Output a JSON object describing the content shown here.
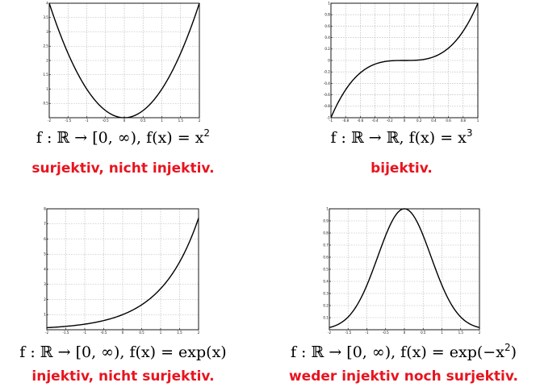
{
  "chart_data": [
    {
      "type": "line",
      "function": "x^2",
      "xlim": [
        -2,
        2
      ],
      "ylim": [
        0,
        4
      ],
      "xticks": [
        -2,
        -1.5,
        -1,
        -0.5,
        0,
        0.5,
        1,
        1.5,
        2
      ],
      "xtick_labels": [
        "-2",
        "-1.5",
        "-1",
        "-0.5",
        "0",
        "0.5",
        "1",
        "1.5",
        "2"
      ],
      "yticks": [
        0.5,
        1,
        1.5,
        2,
        2.5,
        3,
        3.5,
        4
      ],
      "ytick_labels": [
        "0.5",
        "1",
        "1.5",
        "2",
        "2.5",
        "3",
        "3.5",
        "4"
      ],
      "grid": true,
      "x": [
        -2,
        -1.75,
        -1.5,
        -1.25,
        -1,
        -0.75,
        -0.5,
        -0.25,
        0,
        0.25,
        0.5,
        0.75,
        1,
        1.25,
        1.5,
        1.75,
        2
      ],
      "y": [
        4,
        3.0625,
        2.25,
        1.5625,
        1,
        0.5625,
        0.25,
        0.0625,
        0,
        0.0625,
        0.25,
        0.5625,
        1,
        1.5625,
        2.25,
        3.0625,
        4
      ],
      "formula": {
        "lhs": "f : ℝ → [0, ∞), f(x) = x",
        "sup": "2",
        "rhs": ""
      },
      "verdict": "surjektiv, nicht injektiv."
    },
    {
      "type": "line",
      "function": "x^3",
      "xlim": [
        -1,
        1
      ],
      "ylim": [
        -1,
        1
      ],
      "xticks": [
        -1,
        -0.8,
        -0.6,
        -0.4,
        -0.2,
        0,
        0.2,
        0.4,
        0.6,
        0.8,
        1
      ],
      "xtick_labels": [
        "-1",
        "-0.8",
        "-0.6",
        "-0.4",
        "-0.2",
        "0",
        "0.2",
        "0.4",
        "0.6",
        "0.8",
        "1"
      ],
      "yticks": [
        -1,
        -0.8,
        -0.6,
        -0.4,
        -0.2,
        0,
        0.2,
        0.4,
        0.6,
        0.8,
        1
      ],
      "ytick_labels": [
        "-1",
        "-0.8",
        "-0.6",
        "-0.4",
        "-0.2",
        "0",
        "0.2",
        "0.4",
        "0.6",
        "0.8",
        "1"
      ],
      "grid": true,
      "x": [
        -1,
        -0.9,
        -0.8,
        -0.7,
        -0.6,
        -0.5,
        -0.4,
        -0.3,
        -0.2,
        -0.1,
        0,
        0.1,
        0.2,
        0.3,
        0.4,
        0.5,
        0.6,
        0.7,
        0.8,
        0.9,
        1
      ],
      "y": [
        -1,
        -0.729,
        -0.512,
        -0.343,
        -0.216,
        -0.125,
        -0.064,
        -0.027,
        -0.008,
        -0.001,
        0,
        0.001,
        0.008,
        0.027,
        0.064,
        0.125,
        0.216,
        0.343,
        0.512,
        0.729,
        1
      ],
      "formula": {
        "lhs": "f : ℝ → ℝ, f(x) = x",
        "sup": "3",
        "rhs": ""
      },
      "verdict": "bijektiv."
    },
    {
      "type": "line",
      "function": "exp(x)",
      "xlim": [
        -2,
        2
      ],
      "ylim": [
        0,
        8
      ],
      "xticks": [
        -2,
        -1.5,
        -1,
        -0.5,
        0,
        0.5,
        1,
        1.5,
        2
      ],
      "xtick_labels": [
        "-2",
        "-1.5",
        "-1",
        "-0.5",
        "0",
        "0.5",
        "1",
        "1.5",
        "2"
      ],
      "yticks": [
        1,
        2,
        3,
        4,
        5,
        6,
        7,
        8
      ],
      "ytick_labels": [
        "1",
        "2",
        "3",
        "4",
        "5",
        "6",
        "7",
        "8"
      ],
      "grid": true,
      "x": [
        -2,
        -1.75,
        -1.5,
        -1.25,
        -1,
        -0.75,
        -0.5,
        -0.25,
        0,
        0.25,
        0.5,
        0.75,
        1,
        1.25,
        1.5,
        1.75,
        2
      ],
      "y": [
        0.135,
        0.174,
        0.223,
        0.287,
        0.368,
        0.472,
        0.607,
        0.779,
        1,
        1.284,
        1.649,
        2.117,
        2.718,
        3.49,
        4.482,
        5.755,
        7.389
      ],
      "formula": {
        "lhs": "f : ℝ → [0, ∞), f(x) = exp(x)",
        "sup": "",
        "rhs": ""
      },
      "verdict": "injektiv, nicht surjektiv."
    },
    {
      "type": "line",
      "function": "exp(-x^2)",
      "xlim": [
        -2,
        2
      ],
      "ylim": [
        0,
        1
      ],
      "xticks": [
        -2,
        -1.5,
        -1,
        -0.5,
        0,
        0.5,
        1,
        1.5,
        2
      ],
      "xtick_labels": [
        "-2",
        "-1.5",
        "-1",
        "-0.5",
        "0",
        "0.5",
        "1",
        "1.5",
        "2"
      ],
      "yticks": [
        0.1,
        0.2,
        0.3,
        0.4,
        0.5,
        0.6,
        0.7,
        0.8,
        0.9,
        1
      ],
      "ytick_labels": [
        "0.1",
        "0.2",
        "0.3",
        "0.4",
        "0.5",
        "0.6",
        "0.7",
        "0.8",
        "0.9",
        "1"
      ],
      "grid": true,
      "x": [
        -2,
        -1.75,
        -1.5,
        -1.25,
        -1,
        -0.75,
        -0.5,
        -0.25,
        0,
        0.25,
        0.5,
        0.75,
        1,
        1.25,
        1.5,
        1.75,
        2
      ],
      "y": [
        0.018,
        0.047,
        0.105,
        0.21,
        0.368,
        0.57,
        0.779,
        0.939,
        1,
        0.939,
        0.779,
        0.57,
        0.368,
        0.21,
        0.105,
        0.047,
        0.018
      ],
      "formula": {
        "lhs": "f : ℝ → [0, ∞), f(x) = exp(−x",
        "sup": "2",
        "rhs": ")"
      },
      "verdict": "weder injektiv noch surjektiv."
    }
  ]
}
